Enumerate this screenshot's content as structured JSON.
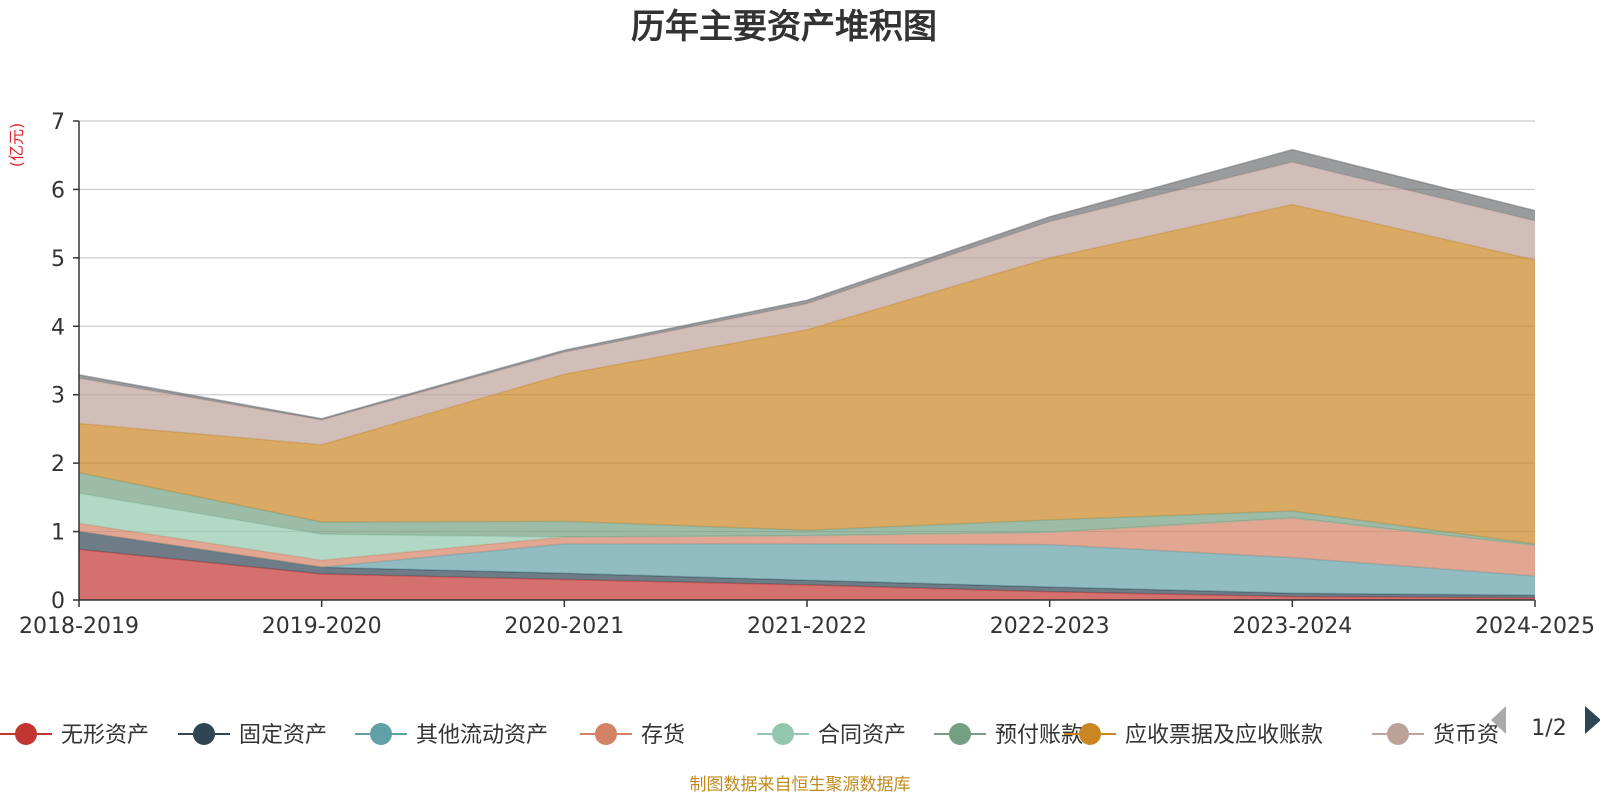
{
  "chart_data": {
    "type": "area",
    "stacked": true,
    "title": "历年主要资产堆积图",
    "ylabel": "(亿元)",
    "categories": [
      "2018-2019",
      "2019-2020",
      "2020-2021",
      "2021-2022",
      "2022-2023",
      "2023-2024",
      "2024-2025"
    ],
    "ylim": [
      0,
      7
    ],
    "yticks": [
      0,
      1,
      2,
      3,
      4,
      5,
      6,
      7
    ],
    "grid": true,
    "legend_position": "bottom",
    "series": [
      {
        "name": "无形资产",
        "color": "#c23531",
        "values": [
          0.74,
          0.38,
          0.3,
          0.22,
          0.12,
          0.05,
          0.03
        ]
      },
      {
        "name": "固定资产",
        "color": "#2f4554",
        "values": [
          0.26,
          0.1,
          0.09,
          0.07,
          0.07,
          0.05,
          0.04
        ]
      },
      {
        "name": "其他流动资产",
        "color": "#61a0a8",
        "values": [
          0.0,
          0.0,
          0.43,
          0.53,
          0.62,
          0.52,
          0.28
        ]
      },
      {
        "name": "存货",
        "color": "#d48265",
        "values": [
          0.12,
          0.1,
          0.1,
          0.12,
          0.18,
          0.58,
          0.45
        ]
      },
      {
        "name": "合同资产",
        "color": "#91c7ae",
        "values": [
          0.44,
          0.38,
          0.0,
          0.0,
          0.0,
          0.0,
          0.0
        ]
      },
      {
        "name": "预付账款",
        "color": "#749f83",
        "values": [
          0.3,
          0.18,
          0.23,
          0.08,
          0.18,
          0.1,
          0.02
        ]
      },
      {
        "name": "应收票据及应收账款",
        "color": "#ca8622",
        "values": [
          0.72,
          1.13,
          2.15,
          2.93,
          3.83,
          4.48,
          4.15
        ]
      },
      {
        "name": "货币资金",
        "color": "#bda29a",
        "values": [
          0.66,
          0.36,
          0.32,
          0.38,
          0.53,
          0.62,
          0.57
        ]
      },
      {
        "name": "",
        "color": "#6e7074",
        "values": [
          0.05,
          0.02,
          0.03,
          0.05,
          0.07,
          0.18,
          0.15
        ]
      }
    ]
  },
  "legend": {
    "items": [
      "无形资产",
      "固定资产",
      "其他流动资产",
      "存货",
      "合同资产",
      "预付账款",
      "应收票据及应收账款",
      "货币资"
    ],
    "page": "1/2"
  },
  "footer": {
    "source": "制图数据来自恒生聚源数据库"
  }
}
